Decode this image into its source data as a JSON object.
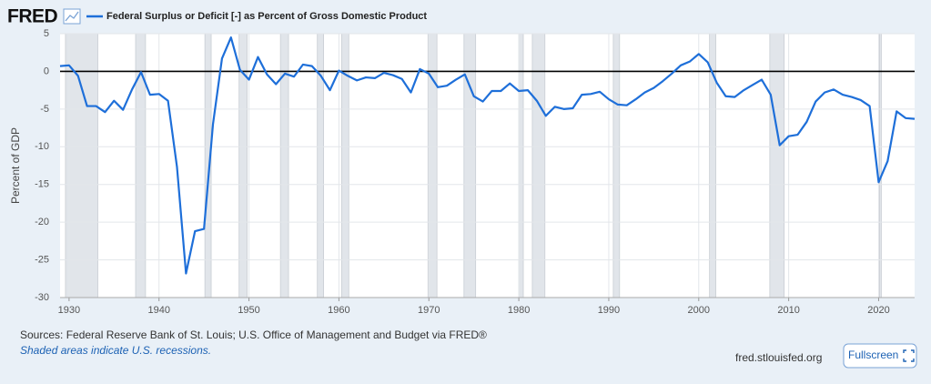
{
  "header": {
    "logo": "FRED"
  },
  "footer": {
    "sources": "Sources: Federal Reserve Bank of St. Louis; U.S. Office of Management and Budget via FRED®",
    "note": "Shaded areas indicate U.S. recessions.",
    "site": "fred.stlouisfed.org",
    "button": "Fullscreen"
  },
  "chart_data": {
    "type": "line",
    "y_label": "Percent of GDP",
    "x": [
      1929,
      1930,
      1931,
      1932,
      1933,
      1934,
      1935,
      1936,
      1937,
      1938,
      1939,
      1940,
      1941,
      1942,
      1943,
      1944,
      1945,
      1946,
      1947,
      1948,
      1949,
      1950,
      1951,
      1952,
      1953,
      1954,
      1955,
      1956,
      1957,
      1958,
      1959,
      1960,
      1961,
      1962,
      1963,
      1964,
      1965,
      1966,
      1967,
      1968,
      1969,
      1970,
      1971,
      1972,
      1973,
      1974,
      1975,
      1976,
      1977,
      1978,
      1979,
      1980,
      1981,
      1982,
      1983,
      1984,
      1985,
      1986,
      1987,
      1988,
      1989,
      1990,
      1991,
      1992,
      1993,
      1994,
      1995,
      1996,
      1997,
      1998,
      1999,
      2000,
      2001,
      2002,
      2003,
      2004,
      2005,
      2006,
      2007,
      2008,
      2009,
      2010,
      2011,
      2012,
      2013,
      2014,
      2015,
      2016,
      2017,
      2018,
      2019,
      2020,
      2021,
      2022,
      2023,
      2024
    ],
    "series": [
      {
        "name": "Federal Surplus or Deficit [-] as Percent of Gross Domestic Product",
        "color": "#1e6fd9",
        "values": [
          0.7,
          0.8,
          -0.6,
          -4.6,
          -4.6,
          -5.4,
          -3.9,
          -5.1,
          -2.4,
          -0.1,
          -3.1,
          -3.0,
          -3.9,
          -12.7,
          -26.8,
          -21.2,
          -20.9,
          -7.0,
          1.7,
          4.5,
          0.2,
          -1.1,
          1.9,
          -0.4,
          -1.7,
          -0.3,
          -0.7,
          0.9,
          0.7,
          -0.6,
          -2.5,
          0.1,
          -0.6,
          -1.2,
          -0.8,
          -0.9,
          -0.2,
          -0.5,
          -1.0,
          -2.8,
          0.3,
          -0.3,
          -2.1,
          -1.9,
          -1.1,
          -0.4,
          -3.3,
          -4.0,
          -2.6,
          -2.6,
          -1.6,
          -2.6,
          -2.5,
          -3.9,
          -5.9,
          -4.7,
          -5.0,
          -4.9,
          -3.1,
          -3.0,
          -2.7,
          -3.7,
          -4.4,
          -4.5,
          -3.7,
          -2.8,
          -2.2,
          -1.3,
          -0.3,
          0.8,
          1.3,
          2.3,
          1.2,
          -1.5,
          -3.3,
          -3.4,
          -2.5,
          -1.8,
          -1.1,
          -3.1,
          -9.8,
          -8.6,
          -8.4,
          -6.7,
          -4.0,
          -2.8,
          -2.4,
          -3.1,
          -3.4,
          -3.8,
          -4.6,
          -14.7,
          -11.9,
          -5.3,
          -6.2,
          -6.3
        ]
      }
    ],
    "recessions": [
      [
        1929.6,
        1933.2
      ],
      [
        1937.4,
        1938.5
      ],
      [
        1945.1,
        1945.8
      ],
      [
        1948.9,
        1949.8
      ],
      [
        1953.5,
        1954.4
      ],
      [
        1957.6,
        1958.3
      ],
      [
        1960.3,
        1961.1
      ],
      [
        1969.9,
        1970.9
      ],
      [
        1973.9,
        1975.2
      ],
      [
        1980.0,
        1980.5
      ],
      [
        1981.5,
        1982.9
      ],
      [
        1990.5,
        1991.2
      ],
      [
        2001.2,
        2001.9
      ],
      [
        2007.9,
        2009.5
      ],
      [
        2020.1,
        2020.3
      ]
    ],
    "recession_color": "#e1e5ea",
    "xlim": [
      1929,
      2024
    ],
    "xticks": [
      1930,
      1940,
      1950,
      1960,
      1970,
      1980,
      1990,
      2000,
      2010,
      2020
    ],
    "ylim": [
      -30,
      5
    ],
    "yticks": [
      5,
      0,
      -5,
      -10,
      -15,
      -20,
      -25,
      -30
    ],
    "grid": true,
    "zero_line": true
  }
}
